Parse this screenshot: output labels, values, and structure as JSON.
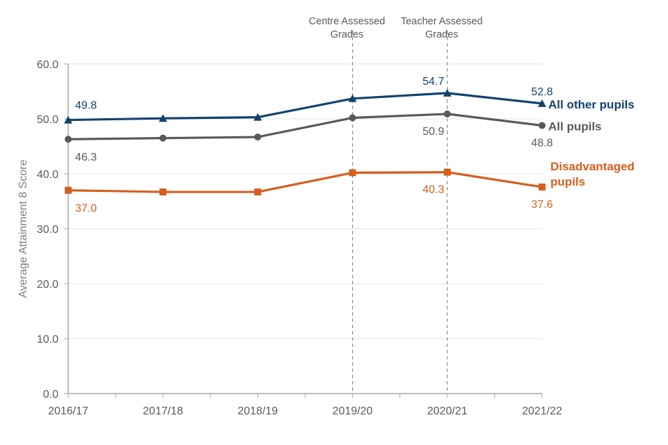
{
  "chart_data": {
    "type": "line",
    "title": "",
    "xlabel": "",
    "ylabel": "Average Attainment 8 Score",
    "ylim": [
      0,
      60
    ],
    "yticks": [
      0,
      10,
      20,
      30,
      40,
      50,
      60
    ],
    "ytick_labels": [
      "0.0",
      "10.0",
      "20.0",
      "30.0",
      "40.0",
      "50.0",
      "60.0"
    ],
    "categories": [
      "2016/17",
      "2017/18",
      "2018/19",
      "2019/20",
      "2020/21",
      "2021/22"
    ],
    "grid": "horizontal",
    "legend": "direct-labels-right",
    "series": [
      {
        "name": "All other pupils",
        "values": [
          49.8,
          50.1,
          50.3,
          53.7,
          54.7,
          52.8
        ],
        "color": "#12436d",
        "marker": "triangle",
        "labels": {
          "0": "49.8",
          "4": "54.7",
          "5": "52.8"
        },
        "label_position": "above"
      },
      {
        "name": "All pupils",
        "values": [
          46.3,
          46.5,
          46.7,
          50.2,
          50.9,
          48.8
        ],
        "color": "#595959",
        "marker": "circle",
        "labels": {
          "0": "46.3",
          "4": "50.9",
          "5": "48.8"
        },
        "label_position": "below"
      },
      {
        "name": "Disadvantaged pupils",
        "name_lines": [
          "Disadvantaged",
          "pupils"
        ],
        "values": [
          37.0,
          36.7,
          36.7,
          40.2,
          40.3,
          37.6
        ],
        "color": "#d55e1b",
        "marker": "square",
        "labels": {
          "0": "37.0",
          "4": "40.3",
          "5": "37.6"
        },
        "label_position": "below"
      }
    ],
    "annotations": [
      {
        "category": "2019/20",
        "lines": [
          "Centre Assessed",
          "Grades"
        ],
        "style": "dashed-vertical"
      },
      {
        "category": "2020/21",
        "lines": [
          "Teacher Assessed",
          "Grades"
        ],
        "style": "dashed-vertical"
      }
    ]
  }
}
